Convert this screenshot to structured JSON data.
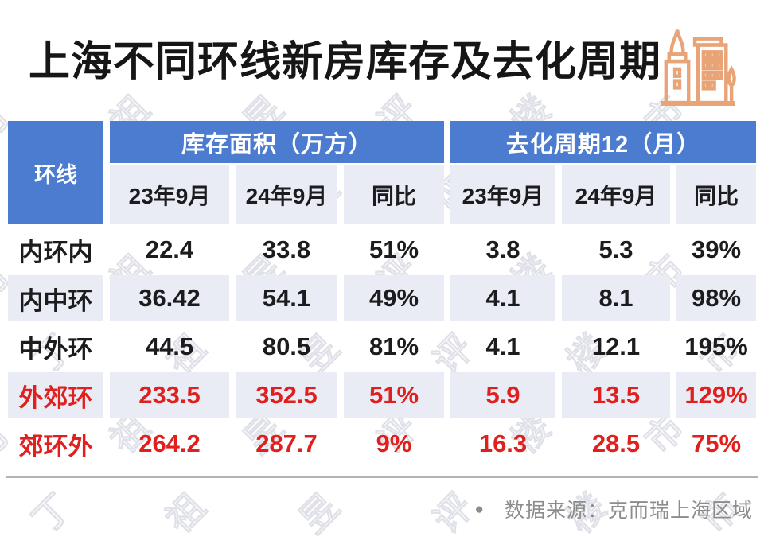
{
  "title": "上海不同环线新房库存及去化周期",
  "icon": {
    "name": "buildings-icon",
    "color": "#E8A376"
  },
  "table": {
    "corner_header": "环线",
    "groups": [
      {
        "label": "库存面积（万方）"
      },
      {
        "label": "去化周期12（月）"
      }
    ],
    "sub_headers": [
      "23年9月",
      "24年9月",
      "同比",
      "23年9月",
      "24年9月",
      "同比"
    ],
    "rows": [
      {
        "label": "内环内",
        "values": [
          "22.4",
          "33.8",
          "51%",
          "3.8",
          "5.3",
          "39%"
        ],
        "highlight": false
      },
      {
        "label": "内中环",
        "values": [
          "36.42",
          "54.1",
          "49%",
          "4.1",
          "8.1",
          "98%"
        ],
        "highlight": false
      },
      {
        "label": "中外环",
        "values": [
          "44.5",
          "80.5",
          "81%",
          "4.1",
          "12.1",
          "195%"
        ],
        "highlight": false
      },
      {
        "label": "外郊环",
        "values": [
          "233.5",
          "352.5",
          "51%",
          "5.9",
          "13.5",
          "129%"
        ],
        "highlight": true
      },
      {
        "label": "郊环外",
        "values": [
          "264.2",
          "287.7",
          "9%",
          "16.3",
          "28.5",
          "75%"
        ],
        "highlight": true
      }
    ]
  },
  "footer": {
    "bullet": "●",
    "source": "数据来源：克而瑞上海区域"
  },
  "watermark": {
    "text": "丁祖昱评楼市"
  },
  "colors": {
    "header_blue": "#4C7CD0",
    "stripe_light": "#E9ECF4",
    "highlight_red": "#E0201E",
    "text_black": "#1c1c1e",
    "footer_grey": "#8c8c8c",
    "icon_orange": "#E8A376"
  },
  "chart_data": {
    "type": "table",
    "title": "上海不同环线新房库存及去化周期",
    "column_groups": [
      "库存面积（万方）",
      "去化周期12（月）"
    ],
    "columns": [
      "环线",
      "库存面积 23年9月",
      "库存面积 24年9月",
      "库存面积 同比",
      "去化周期 23年9月",
      "去化周期 24年9月",
      "去化周期 同比"
    ],
    "rows": [
      [
        "内环内",
        22.4,
        33.8,
        "51%",
        3.8,
        5.3,
        "39%"
      ],
      [
        "内中环",
        36.42,
        54.1,
        "49%",
        4.1,
        8.1,
        "98%"
      ],
      [
        "中外环",
        44.5,
        80.5,
        "81%",
        4.1,
        12.1,
        "195%"
      ],
      [
        "外郊环",
        233.5,
        352.5,
        "51%",
        5.9,
        13.5,
        "129%"
      ],
      [
        "郊环外",
        264.2,
        287.7,
        "9%",
        16.3,
        28.5,
        "75%"
      ]
    ],
    "source": "数据来源：克而瑞上海区域"
  }
}
